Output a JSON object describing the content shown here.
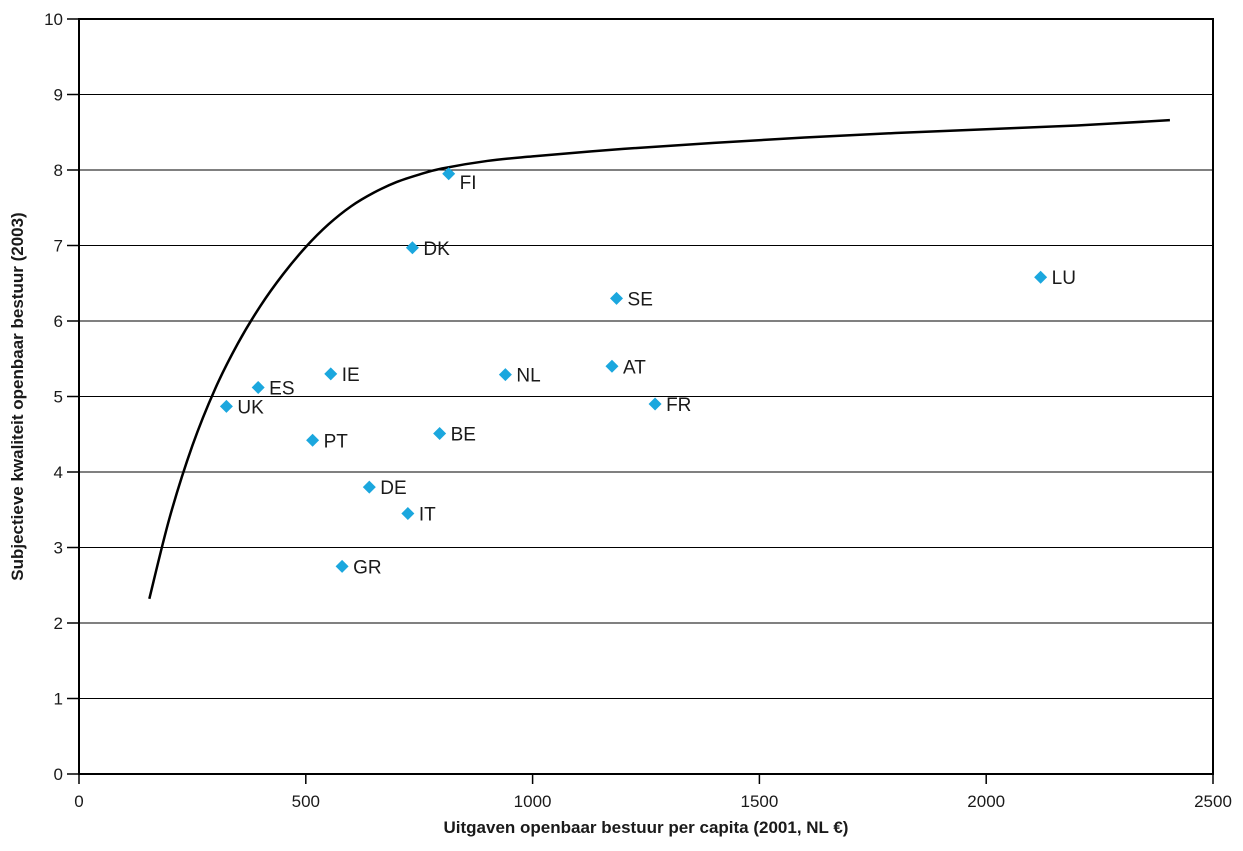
{
  "chart_data": {
    "type": "scatter",
    "xlabel": "Uitgaven openbaar bestuur per capita (2001, NL €)",
    "ylabel": "Subjectieve kwaliteit openbaar bestuur (2003)",
    "xlim": [
      0,
      2500
    ],
    "ylim": [
      0,
      10
    ],
    "x_ticks": [
      0,
      500,
      1000,
      1500,
      2000,
      2500
    ],
    "y_ticks": [
      0,
      1,
      2,
      3,
      4,
      5,
      6,
      7,
      8,
      9,
      10
    ],
    "grid": "horizontal",
    "legend": "none",
    "point_color": "#1ba7de",
    "curve_color": "#000000",
    "points": [
      {
        "label": "UK",
        "x": 325,
        "y": 4.87
      },
      {
        "label": "ES",
        "x": 395,
        "y": 5.12
      },
      {
        "label": "IE",
        "x": 555,
        "y": 5.3
      },
      {
        "label": "PT",
        "x": 515,
        "y": 4.42
      },
      {
        "label": "GR",
        "x": 580,
        "y": 2.75
      },
      {
        "label": "DE",
        "x": 640,
        "y": 3.8
      },
      {
        "label": "IT",
        "x": 725,
        "y": 3.45
      },
      {
        "label": "DK",
        "x": 735,
        "y": 6.97
      },
      {
        "label": "BE",
        "x": 795,
        "y": 4.51
      },
      {
        "label": "FI",
        "x": 815,
        "y": 7.95
      },
      {
        "label": "NL",
        "x": 940,
        "y": 5.29
      },
      {
        "label": "AT",
        "x": 1175,
        "y": 5.4
      },
      {
        "label": "SE",
        "x": 1185,
        "y": 6.3
      },
      {
        "label": "FR",
        "x": 1270,
        "y": 4.9
      },
      {
        "label": "LU",
        "x": 2120,
        "y": 6.58
      }
    ],
    "curve": [
      {
        "x": 155,
        "y": 2.32
      },
      {
        "x": 200,
        "y": 3.4
      },
      {
        "x": 250,
        "y": 4.35
      },
      {
        "x": 300,
        "y": 5.1
      },
      {
        "x": 350,
        "y": 5.7
      },
      {
        "x": 400,
        "y": 6.2
      },
      {
        "x": 450,
        "y": 6.62
      },
      {
        "x": 500,
        "y": 6.98
      },
      {
        "x": 550,
        "y": 7.28
      },
      {
        "x": 600,
        "y": 7.52
      },
      {
        "x": 650,
        "y": 7.7
      },
      {
        "x": 700,
        "y": 7.84
      },
      {
        "x": 750,
        "y": 7.94
      },
      {
        "x": 800,
        "y": 8.02
      },
      {
        "x": 900,
        "y": 8.12
      },
      {
        "x": 1000,
        "y": 8.18
      },
      {
        "x": 1200,
        "y": 8.28
      },
      {
        "x": 1400,
        "y": 8.36
      },
      {
        "x": 1600,
        "y": 8.43
      },
      {
        "x": 1800,
        "y": 8.49
      },
      {
        "x": 2000,
        "y": 8.54
      },
      {
        "x": 2200,
        "y": 8.59
      },
      {
        "x": 2405,
        "y": 8.66
      }
    ]
  }
}
